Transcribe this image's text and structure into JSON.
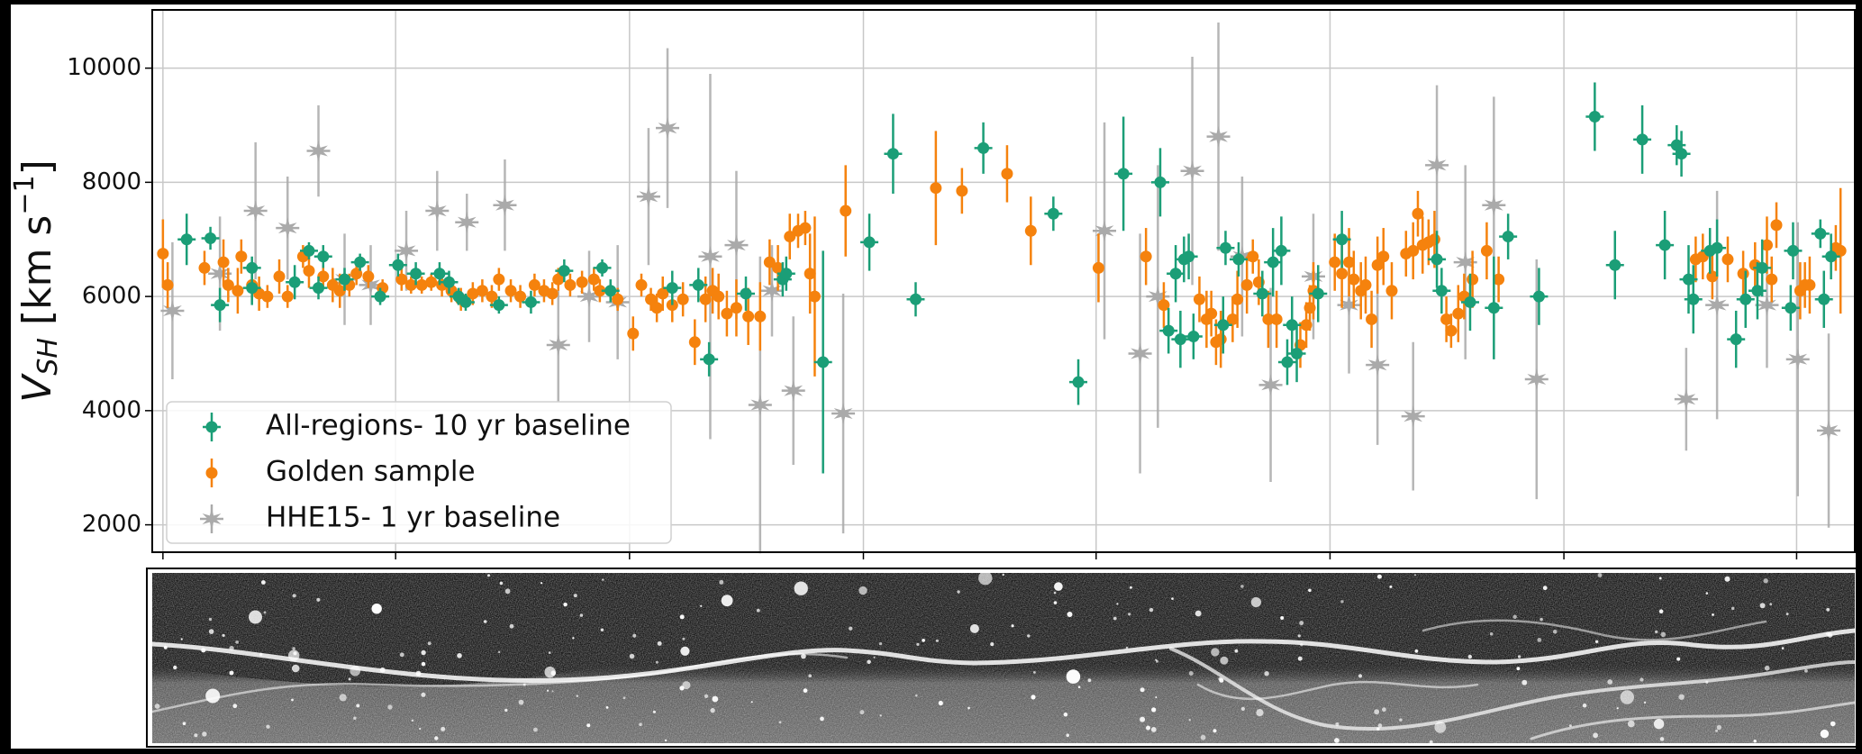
{
  "chart_data": {
    "type": "scatter",
    "y_label": [
      "V",
      "SH",
      " [km s",
      "−1",
      "]"
    ],
    "xlim": [
      128,
      1562
    ],
    "xticks": [
      137,
      333,
      530,
      727,
      923,
      1120,
      1317,
      1513
    ],
    "ylim": [
      1520,
      11020
    ],
    "yticks": [
      2000,
      4000,
      6000,
      8000,
      10000
    ],
    "grid": true,
    "legend": "lower left",
    "series": [
      {
        "name": "All-regions- 10 yr baseline",
        "color": "#1b9e77",
        "marker": "circle-cross",
        "x": [
          157,
          177,
          185,
          212,
          212,
          248,
          260,
          272,
          268,
          290,
          303,
          320,
          335,
          350,
          370,
          378,
          386,
          392,
          420,
          447,
          475,
          507,
          514,
          566,
          588,
          597,
          628,
          659,
          662,
          693,
          732,
          752,
          771,
          828,
          887,
          908,
          946,
          977,
          984,
          990,
          994,
          997,
          1001,
          1005,
          1030,
          1032,
          1043,
          1063,
          1072,
          1079,
          1084,
          1088,
          1092,
          1110,
          1130,
          1210,
          1214,
          1238,
          1258,
          1270,
          1296,
          1343,
          1360,
          1383,
          1402,
          1412,
          1416,
          1422,
          1426,
          1440,
          1446,
          1462,
          1470,
          1480,
          1484,
          1508,
          1510,
          1533,
          1536,
          1542
        ],
        "values": [
          7000,
          7020,
          5850,
          6150,
          6500,
          6250,
          6800,
          6700,
          6150,
          6300,
          6600,
          6000,
          6550,
          6400,
          6400,
          6250,
          6000,
          5900,
          5850,
          5900,
          6450,
          6500,
          6100,
          6150,
          6200,
          4900,
          6050,
          6300,
          6400,
          4850,
          6950,
          8500,
          5950,
          8600,
          7450,
          4500,
          8150,
          8000,
          5400,
          6400,
          5250,
          6650,
          6700,
          5300,
          5500,
          6850,
          6650,
          6050,
          6600,
          6800,
          4850,
          5500,
          5000,
          6050,
          7000,
          6650,
          6100,
          5900,
          5800,
          7050,
          6000,
          9150,
          6550,
          8750,
          6900,
          8650,
          8500,
          6300,
          5950,
          6800,
          6850,
          5250,
          5950,
          6100,
          6500,
          5800,
          6800,
          7100,
          5950,
          6700
        ],
        "errors": [
          450,
          200,
          300,
          300,
          200,
          300,
          150,
          200,
          200,
          200,
          150,
          150,
          200,
          200,
          200,
          200,
          150,
          150,
          150,
          200,
          200,
          150,
          200,
          300,
          300,
          300,
          300,
          300,
          300,
          1950,
          500,
          700,
          300,
          450,
          300,
          400,
          1000,
          600,
          400,
          500,
          500,
          400,
          400,
          400,
          500,
          300,
          300,
          400,
          600,
          600,
          400,
          500,
          500,
          500,
          500,
          500,
          400,
          500,
          900,
          400,
          500,
          600,
          600,
          600,
          600,
          350,
          400,
          600,
          600,
          400,
          500,
          500,
          500,
          500,
          500,
          400,
          500,
          250,
          500,
          400
        ]
      },
      {
        "name": "Golden sample",
        "color": "#f5820d",
        "marker": "circle",
        "x": [
          137,
          141,
          172,
          188,
          192,
          200,
          203,
          212,
          218,
          225,
          235,
          242,
          255,
          260,
          272,
          280,
          286,
          294,
          300,
          310,
          322,
          338,
          346,
          355,
          363,
          372,
          380,
          388,
          398,
          406,
          414,
          420,
          430,
          438,
          450,
          458,
          465,
          470,
          480,
          490,
          500,
          505,
          520,
          533,
          540,
          548,
          553,
          558,
          566,
          575,
          585,
          594,
          600,
          605,
          612,
          620,
          630,
          640,
          648,
          655,
          665,
          672,
          678,
          682,
          686,
          712,
          788,
          810,
          848,
          868,
          925,
          965,
          980,
          1010,
          1016,
          1020,
          1024,
          1028,
          1038,
          1042,
          1050,
          1055,
          1060,
          1068,
          1075,
          1095,
          1100,
          1103,
          1106,
          1124,
          1130,
          1136,
          1140,
          1146,
          1150,
          1155,
          1160,
          1165,
          1172,
          1184,
          1190,
          1194,
          1198,
          1203,
          1208,
          1218,
          1222,
          1228,
          1233,
          1240,
          1252,
          1262,
          1428,
          1434,
          1442,
          1455,
          1468,
          1478,
          1488,
          1492,
          1496,
          1516,
          1520,
          1524,
          1546,
          1550
        ],
        "values": [
          6750,
          6200,
          6500,
          6600,
          6200,
          6100,
          6700,
          6200,
          6050,
          6000,
          6350,
          6000,
          6700,
          6450,
          6350,
          6200,
          6100,
          6200,
          6400,
          6350,
          6150,
          6300,
          6200,
          6200,
          6250,
          6200,
          6100,
          5950,
          6050,
          6100,
          6000,
          6300,
          6100,
          6000,
          6200,
          6100,
          6050,
          6300,
          6200,
          6250,
          6300,
          6100,
          5950,
          5350,
          6200,
          5950,
          5800,
          6050,
          5850,
          5950,
          5200,
          5950,
          6100,
          6000,
          5700,
          5800,
          5650,
          5650,
          6600,
          6500,
          7050,
          7150,
          7200,
          6400,
          6000,
          7500,
          7900,
          7850,
          8150,
          7150,
          6500,
          6700,
          5850,
          5950,
          5600,
          5700,
          5200,
          5250,
          5600,
          5950,
          6200,
          6700,
          6250,
          5600,
          5600,
          5150,
          5500,
          5800,
          6100,
          6600,
          6400,
          6600,
          6300,
          6100,
          6200,
          5600,
          6550,
          6700,
          6100,
          6750,
          6800,
          7450,
          6900,
          6950,
          7000,
          5600,
          5400,
          5700,
          6000,
          6300,
          6800,
          6300,
          6650,
          6700,
          6350,
          6650,
          6400,
          6550,
          6900,
          6300,
          7250,
          6100,
          6200,
          6200,
          6850,
          6800
        ],
        "errors": [
          600,
          400,
          300,
          400,
          300,
          400,
          300,
          300,
          300,
          200,
          300,
          200,
          200,
          300,
          200,
          300,
          300,
          200,
          200,
          200,
          150,
          200,
          150,
          150,
          150,
          200,
          200,
          200,
          200,
          200,
          200,
          200,
          200,
          200,
          200,
          200,
          200,
          200,
          200,
          200,
          200,
          200,
          200,
          300,
          200,
          200,
          250,
          300,
          300,
          300,
          400,
          400,
          400,
          400,
          400,
          500,
          500,
          600,
          400,
          400,
          400,
          300,
          300,
          700,
          1400,
          800,
          1000,
          400,
          500,
          600,
          600,
          500,
          400,
          400,
          500,
          400,
          400,
          500,
          400,
          500,
          500,
          300,
          400,
          500,
          500,
          400,
          400,
          400,
          500,
          500,
          600,
          600,
          500,
          500,
          500,
          500,
          500,
          500,
          500,
          400,
          500,
          400,
          500,
          400,
          500,
          400,
          300,
          500,
          400,
          500,
          500,
          400,
          400,
          400,
          400,
          400,
          400,
          400,
          500,
          400,
          400,
          500,
          400,
          500,
          400,
          1100
        ]
      },
      {
        "name": "HHE15- 1 yr baseline",
        "color": "#aaaaaa",
        "marker": "star",
        "x": [
          145,
          185,
          215,
          242,
          268,
          290,
          312,
          342,
          368,
          393,
          425,
          470,
          496,
          520,
          546,
          562,
          598,
          620,
          640,
          650,
          668,
          710,
          930,
          960,
          975,
          1004,
          1026,
          1046,
          1070,
          1106,
          1136,
          1160,
          1190,
          1210,
          1234,
          1258,
          1294,
          1420,
          1446,
          1488,
          1514,
          1540
        ],
        "values": [
          5750,
          6400,
          7500,
          7200,
          8550,
          6300,
          6200,
          6800,
          7500,
          7300,
          7600,
          5150,
          6000,
          5900,
          7750,
          8950,
          6700,
          6900,
          4100,
          6100,
          4350,
          3950,
          7150,
          5000,
          6000,
          8200,
          8800,
          6700,
          4450,
          6350,
          5850,
          4800,
          3900,
          8300,
          6600,
          7600,
          4550,
          4200,
          5850,
          5850,
          4900,
          3650
        ],
        "errors": [
          1200,
          1000,
          1200,
          900,
          800,
          800,
          700,
          700,
          700,
          500,
          800,
          1000,
          800,
          1000,
          1200,
          1400,
          3200,
          1300,
          2600,
          800,
          1300,
          2100,
          1900,
          2100,
          2300,
          2000,
          2000,
          1400,
          1700,
          1100,
          1200,
          1400,
          1300,
          1400,
          1700,
          1900,
          2100,
          900,
          2000,
          1100,
          2400,
          1700
        ]
      }
    ]
  }
}
